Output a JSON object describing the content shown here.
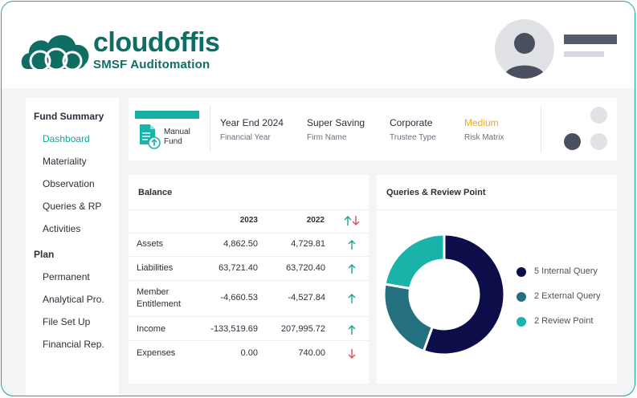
{
  "brand": {
    "name": "cloudoffis",
    "subtitle": "SMSF Auditomation",
    "color": "#0f6d63"
  },
  "sidebar": {
    "sections": [
      {
        "title": "Fund Summary",
        "items": [
          "Dashboard",
          "Materiality",
          "Observation",
          "Queries & RP",
          "Activities"
        ]
      },
      {
        "title": "Plan",
        "items": [
          "Permanent",
          "Analytical Pro.",
          "File Set Up",
          "Financial Rep."
        ]
      }
    ],
    "active": "Dashboard",
    "active_color": "#16a392"
  },
  "fund": {
    "type_line1": "Manual",
    "type_line2": "Fund",
    "fields": [
      {
        "value": "Year End 2024",
        "label": "Financial Year"
      },
      {
        "value": "Super Saving",
        "label": "Firm Name"
      },
      {
        "value": "Corporate",
        "label": "Trustee Type"
      },
      {
        "value": "Medium",
        "label": "Risk Matrix"
      }
    ],
    "risk_color": "#f0a81c"
  },
  "balance": {
    "title": "Balance",
    "col_2023": "2023",
    "col_2022": "2022",
    "rows": [
      {
        "label": "Assets",
        "v2023": "4,862.50",
        "v2022": "4,729.81",
        "trend": "up"
      },
      {
        "label": "Liabilities",
        "v2023": "63,721.40",
        "v2022": "63,720.40",
        "trend": "up"
      },
      {
        "label": "Member Entitlement",
        "v2023": "-4,660.53",
        "v2022": "-4,527.84",
        "trend": "up"
      },
      {
        "label": "Income",
        "v2023": "-133,519.69",
        "v2022": "207,995.72",
        "trend": "up"
      },
      {
        "label": "Expenses",
        "v2023": "0.00",
        "v2022": "740.00",
        "trend": "down"
      }
    ],
    "up_color": "#16a392",
    "down_color": "#e2495c"
  },
  "queries": {
    "title": "Queries & Review Point",
    "segments": [
      {
        "label": "5 Internal Query",
        "count": 5,
        "color": "#0d0d4a"
      },
      {
        "label": "2 External Query",
        "count": 2,
        "color": "#24707f"
      },
      {
        "label": "2 Review Point",
        "count": 2,
        "color": "#19b3aa"
      }
    ]
  }
}
